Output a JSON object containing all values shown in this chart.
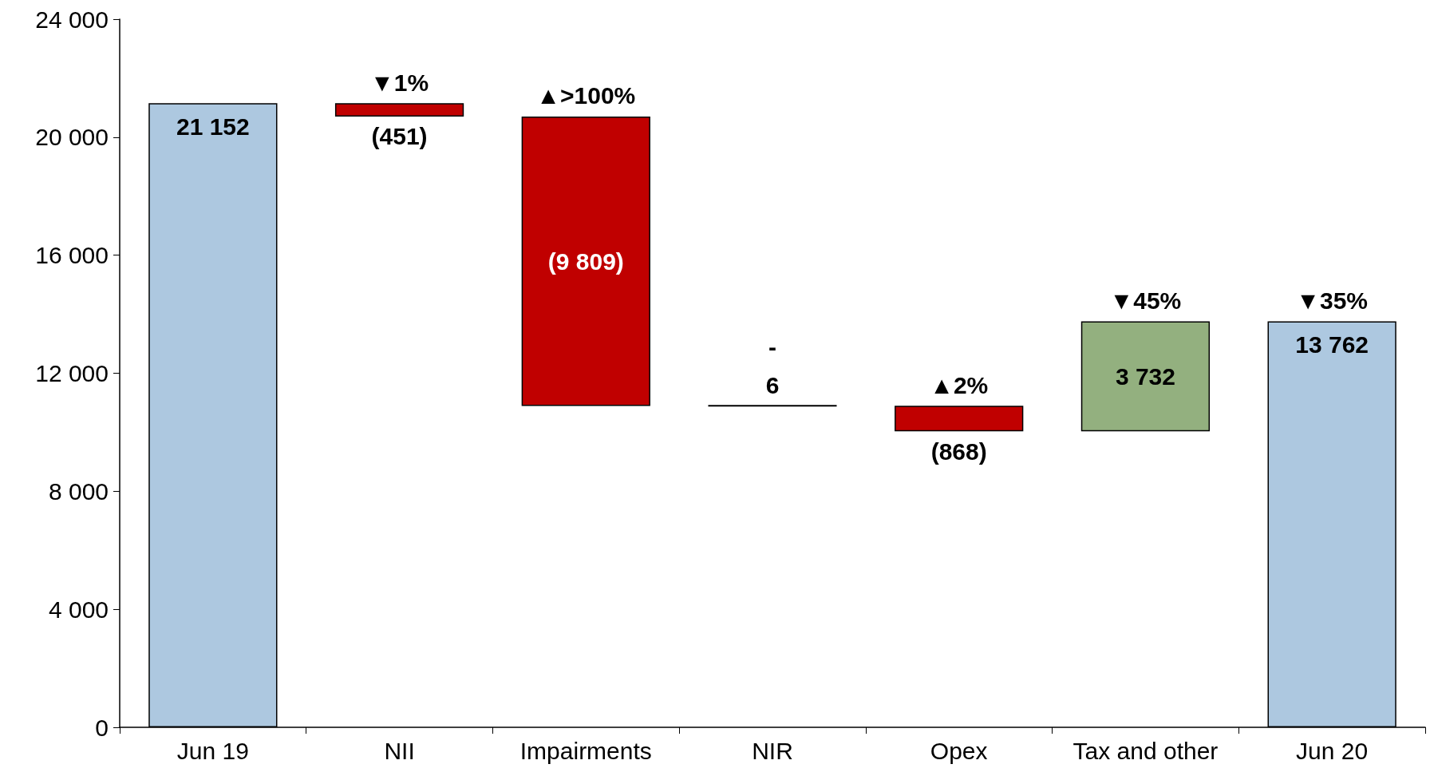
{
  "chart_data": {
    "type": "bar",
    "categories": [
      "Jun 19",
      "NII",
      "Impairments",
      "NIR",
      "Opex",
      "Tax and other",
      "Jun 20"
    ],
    "values": [
      21152,
      -451,
      -9809,
      6,
      -868,
      3732,
      13762
    ],
    "base": [
      0,
      21152,
      20701,
      10892,
      10898,
      10030,
      0
    ],
    "colors": [
      "#adc8e0",
      "#c00000",
      "#c00000",
      "#000000",
      "#c00000",
      "#93b07f",
      "#adc8e0"
    ],
    "value_labels": [
      "21 152",
      "(451)",
      "(9 809)",
      "6",
      "(868)",
      "3 732",
      "13 762"
    ],
    "ylim": [
      0,
      24000
    ],
    "yticks": [
      {
        "value": 0,
        "label": "0"
      },
      {
        "value": 4000,
        "label": "4 000"
      },
      {
        "value": 8000,
        "label": "8 000"
      },
      {
        "value": 12000,
        "label": "12 000"
      },
      {
        "value": 16000,
        "label": "16 000"
      },
      {
        "value": 20000,
        "label": "20 000"
      },
      {
        "value": 24000,
        "label": "24 000"
      }
    ],
    "annotations": [
      {
        "text": "▼1%",
        "x": "NII",
        "y": 21152
      },
      {
        "text": "▲>100%",
        "x": "Impairments",
        "y": 20701
      },
      {
        "text": "-",
        "x": "NIR",
        "y": 10898
      },
      {
        "text": "▲2%",
        "x": "Opex",
        "y": 10898
      },
      {
        "text": "▼45%",
        "x": "Tax and other",
        "y": 13762
      },
      {
        "text": "▼35%",
        "x": "Jun 20",
        "y": 13762
      }
    ],
    "grid": false
  }
}
